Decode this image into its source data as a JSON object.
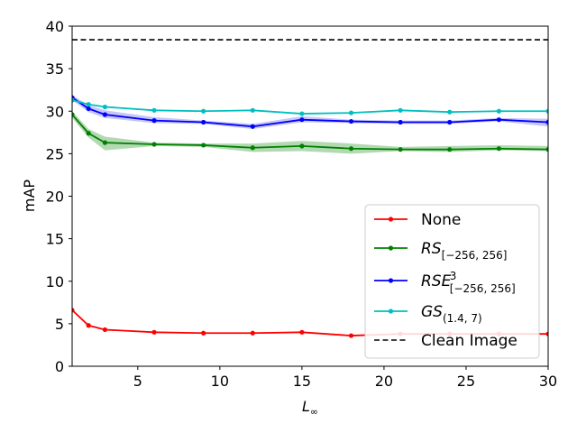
{
  "chart_data": {
    "type": "line",
    "title": "",
    "xlabel": "L∞",
    "ylabel": "mAP",
    "xlim": [
      1,
      30
    ],
    "ylim": [
      0,
      40
    ],
    "x_ticks": [
      5,
      10,
      15,
      20,
      25,
      30
    ],
    "y_ticks": [
      0,
      5,
      10,
      15,
      20,
      25,
      30,
      35,
      40
    ],
    "grid": false,
    "legend_position": "lower-right",
    "series": [
      {
        "name": "None",
        "color": "#ff0000",
        "x": [
          1,
          2,
          3,
          6,
          9,
          12,
          15,
          18,
          21,
          24,
          27,
          30
        ],
        "y": [
          6.6,
          4.8,
          4.3,
          4.0,
          3.9,
          3.9,
          4.0,
          3.6,
          3.8,
          3.8,
          3.8,
          3.8
        ],
        "band_low": null,
        "band_high": null
      },
      {
        "name": "RS[−256, 256]",
        "legend_base": "RS",
        "legend_sub": "[−256, 256]",
        "legend_sup": "",
        "color": "#008000",
        "band_color": "#7fbf7f",
        "x": [
          1,
          2,
          3,
          6,
          9,
          12,
          15,
          18,
          21,
          24,
          27,
          30
        ],
        "y": [
          29.6,
          27.4,
          26.3,
          26.1,
          26.0,
          25.7,
          25.9,
          25.6,
          25.5,
          25.5,
          25.6,
          25.5
        ],
        "band_low": [
          29.2,
          26.9,
          25.4,
          25.9,
          25.8,
          25.2,
          25.3,
          25.0,
          25.3,
          25.2,
          25.4,
          25.3
        ],
        "band_high": [
          30.0,
          27.9,
          27.0,
          26.3,
          26.2,
          26.2,
          26.5,
          26.2,
          25.8,
          25.9,
          26.0,
          25.9
        ]
      },
      {
        "name": "RSE3[−256, 256]",
        "legend_base": "RSE",
        "legend_sub": "[−256, 256]",
        "legend_sup": "3",
        "color": "#0000ff",
        "band_color": "#9f9ff5",
        "x": [
          1,
          2,
          3,
          6,
          9,
          12,
          15,
          18,
          21,
          24,
          27,
          30
        ],
        "y": [
          31.6,
          30.3,
          29.6,
          28.9,
          28.7,
          28.2,
          29.0,
          28.8,
          28.7,
          28.7,
          29.0,
          28.7
        ],
        "band_low": [
          31.3,
          29.9,
          29.2,
          28.6,
          28.5,
          27.9,
          28.7,
          28.6,
          28.5,
          28.5,
          28.8,
          28.2
        ],
        "band_high": [
          31.9,
          30.7,
          30.1,
          29.3,
          28.9,
          28.5,
          29.4,
          29.0,
          28.9,
          28.9,
          29.2,
          29.1
        ]
      },
      {
        "name": "GS(1.4, 7)",
        "legend_base": "GS",
        "legend_sub": "(1.4, 7)",
        "legend_sup": "",
        "color": "#00bfbf",
        "x": [
          1,
          2,
          3,
          6,
          9,
          12,
          15,
          18,
          21,
          24,
          27,
          30
        ],
        "y": [
          31.3,
          30.8,
          30.5,
          30.1,
          30.0,
          30.1,
          29.7,
          29.8,
          30.1,
          29.9,
          30.0,
          30.0
        ],
        "band_low": null,
        "band_high": null
      },
      {
        "name": "Clean Image",
        "color": "#000000",
        "dashed": true,
        "y_constant": 38.4
      }
    ]
  }
}
